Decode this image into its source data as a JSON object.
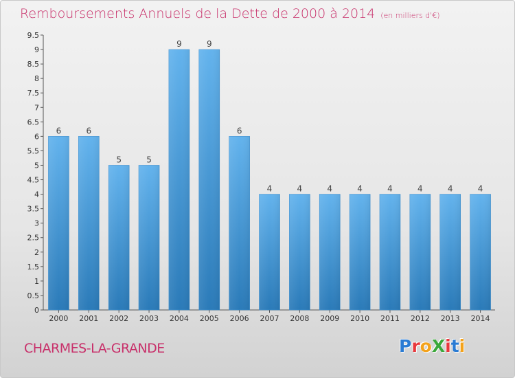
{
  "header": {
    "title": "Remboursements Annuels de la Dette de 2000 à 2014",
    "subtitle": "(en milliers d'€)"
  },
  "footer": {
    "commune": "CHARMES-LA-GRANDE",
    "logo": {
      "text": "ProXiti",
      "letters": [
        "P",
        "r",
        "o",
        "X",
        "i",
        "t",
        "i"
      ],
      "colors": [
        "#2a7bd3",
        "#e8383d",
        "#f3a21b",
        "#3aa83a",
        "#e8383d",
        "#2a7bd3",
        "#f3a21b"
      ]
    }
  },
  "colors": {
    "title": "#c8306a",
    "bar_light": "#63b3ed",
    "bar_dark": "#2a7ab8"
  },
  "chart_data": {
    "type": "bar",
    "title": "Remboursements Annuels de la Dette de 2000 à 2014",
    "subtitle": "(en milliers d'€)",
    "categories": [
      "2000",
      "2001",
      "2002",
      "2003",
      "2004",
      "2005",
      "2006",
      "2007",
      "2008",
      "2009",
      "2010",
      "2011",
      "2012",
      "2013",
      "2014"
    ],
    "values": [
      6,
      6,
      5,
      5,
      9,
      9,
      6,
      4,
      4,
      4,
      4,
      4,
      4,
      4,
      4
    ],
    "data_labels": [
      "6",
      "6",
      "5",
      "5",
      "9",
      "9",
      "6",
      "4",
      "4",
      "4",
      "4",
      "4",
      "4",
      "4",
      "4"
    ],
    "y_ticks": [
      0,
      0.5,
      1,
      1.5,
      2,
      2.5,
      3,
      3.5,
      4,
      4.5,
      5,
      5.5,
      6,
      6.5,
      7,
      7.5,
      8,
      8.5,
      9,
      9.5
    ],
    "y_tick_labels": [
      "0",
      "0.5",
      "1",
      "1.5",
      "2",
      "2.5",
      "3",
      "3.5",
      "4",
      "4.5",
      "5",
      "5.5",
      "6",
      "6.5",
      "7",
      "7.5",
      "8",
      "8.5",
      "9",
      "9.5"
    ],
    "ylim": [
      0,
      9.5
    ],
    "xlabel": "",
    "ylabel": "",
    "grid": false,
    "legend": "none"
  }
}
